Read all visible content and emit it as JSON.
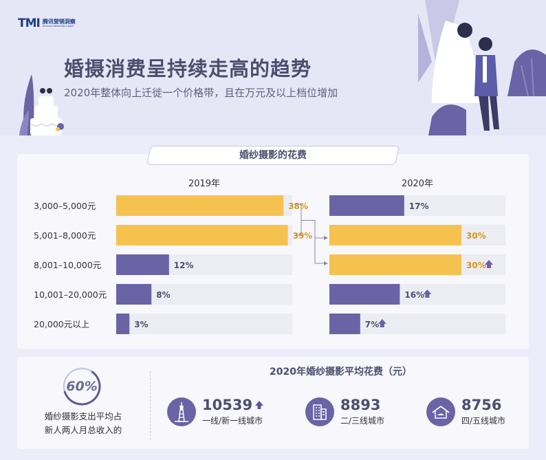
{
  "logo": {
    "mark": "TMI",
    "name": "腾讯营销洞察",
    "tagline": "tencent marketing insight"
  },
  "title": "婚摄消费呈持续走高的趋势",
  "subtitle": "2020年整体向上迁徙一个价格带，且在万元及以上档位增加",
  "section_title": "婚纱摄影的花费",
  "chart_data": {
    "type": "bar",
    "orientation": "horizontal",
    "categories": [
      "3,000–5,000元",
      "5,001–8,000元",
      "8,001–10,000元",
      "10,001–20,000元",
      "20,000元以上"
    ],
    "series": [
      {
        "name": "2019年",
        "values": [
          38,
          39,
          12,
          8,
          3
        ]
      },
      {
        "name": "2020年",
        "values": [
          17,
          30,
          30,
          16,
          7
        ],
        "increase": [
          false,
          false,
          true,
          true,
          true
        ]
      }
    ],
    "value_format": "{v}%",
    "highlight_rows": {
      "2019年": [
        0,
        1
      ],
      "2020年": [
        1,
        2
      ]
    },
    "xlim": [
      0,
      100
    ],
    "colors": {
      "highlight": "#f6c24f",
      "normal": "#6a63a5",
      "track": "#ececf3",
      "highlight_label": "#d9961e",
      "normal_label": "#4a4f6e"
    }
  },
  "income": {
    "percent": "60%",
    "line1": "婚纱摄影支出平均占",
    "line2": "新人两人月总收入的"
  },
  "avg_cost": {
    "title": "2020年婚纱摄影平均花费（元）",
    "cities": [
      {
        "value": "10539",
        "label": "一线/新一线城市",
        "icon": "tower-icon",
        "trend": "up"
      },
      {
        "value": "8893",
        "label": "二/三线城市",
        "icon": "buildings-icon",
        "trend": ""
      },
      {
        "value": "8756",
        "label": "四/五线城市",
        "icon": "house-icon",
        "trend": ""
      }
    ]
  }
}
